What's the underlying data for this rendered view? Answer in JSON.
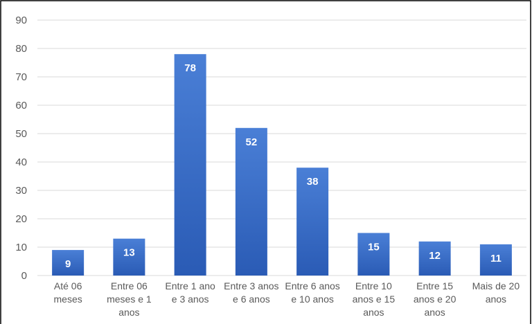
{
  "chart_data": {
    "type": "bar",
    "categories": [
      "Até 06 meses",
      "Entre 06 meses e 1 anos",
      "Entre 1 ano e 3 anos",
      "Entre 3 anos e 6 anos",
      "Entre 6 anos e 10 anos",
      "Entre 10 anos e 15 anos",
      "Entre 15 anos e 20 anos",
      "Mais de 20 anos"
    ],
    "category_lines": [
      [
        "Até 06",
        "meses"
      ],
      [
        "Entre 06",
        "meses e 1",
        "anos"
      ],
      [
        "Entre 1 ano",
        "e 3 anos"
      ],
      [
        "Entre 3 anos",
        "e 6 anos"
      ],
      [
        "Entre 6 anos",
        "e 10 anos"
      ],
      [
        "Entre 10",
        "anos e 15",
        "anos"
      ],
      [
        "Entre 15",
        "anos e 20",
        "anos"
      ],
      [
        "Mais de 20",
        "anos"
      ]
    ],
    "values": [
      9,
      13,
      78,
      52,
      38,
      15,
      12,
      11
    ],
    "data_labels": [
      "9",
      "13",
      "78",
      "52",
      "38",
      "15",
      "12",
      "11"
    ],
    "title": "",
    "xlabel": "",
    "ylabel": "",
    "ylim": [
      0,
      90
    ],
    "yticks": [
      0,
      10,
      20,
      30,
      40,
      50,
      60,
      70,
      80,
      90
    ],
    "ytick_labels": [
      "0",
      "10",
      "20",
      "30",
      "40",
      "50",
      "60",
      "70",
      "80",
      "90"
    ],
    "grid": true,
    "legend": "none",
    "colors": {
      "bar_top": "#4a7fd6",
      "bar_bottom": "#2a5bb5",
      "grid": "#d9d9d9",
      "border": "#000000",
      "label_text": "#ffffff",
      "axis_text": "#595959"
    }
  }
}
